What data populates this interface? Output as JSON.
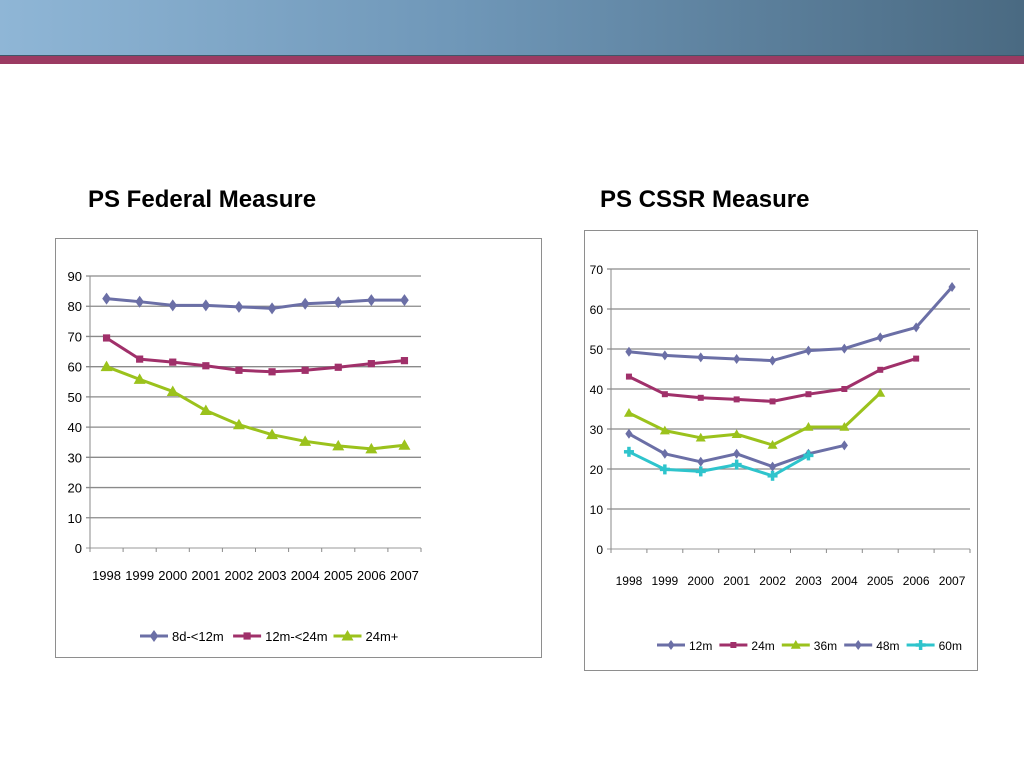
{
  "slide": {
    "header_color": "#6f97b8",
    "accent_color": "#9b3a62"
  },
  "chart_data": [
    {
      "type": "line",
      "title": "PS Federal Measure",
      "xlabel": "",
      "ylabel": "",
      "categories": [
        "1998",
        "1999",
        "2000",
        "2001",
        "2002",
        "2003",
        "2004",
        "2005",
        "2006",
        "2007"
      ],
      "ylim": [
        0,
        90
      ],
      "yticks": [
        0,
        10,
        20,
        30,
        40,
        50,
        60,
        70,
        80,
        90
      ],
      "grid": true,
      "legend": "bottom",
      "series": [
        {
          "name": "8d-<12m",
          "color": "#6b6fa6",
          "marker": "diamond",
          "values": [
            82.5,
            81.5,
            80.3,
            80.3,
            79.8,
            79.3,
            80.8,
            81.3,
            82,
            82
          ]
        },
        {
          "name": "12m-<24m",
          "color": "#a0306a",
          "marker": "square",
          "values": [
            69.5,
            62.5,
            61.5,
            60.3,
            58.8,
            58.3,
            58.8,
            59.8,
            61,
            62
          ]
        },
        {
          "name": "24m+",
          "color": "#9bc21c",
          "marker": "triangle",
          "values": [
            60,
            55.8,
            51.8,
            45.5,
            40.8,
            37.5,
            35.3,
            33.8,
            32.8,
            34
          ]
        }
      ]
    },
    {
      "type": "line",
      "title": "PS CSSR Measure",
      "xlabel": "",
      "ylabel": "",
      "categories": [
        "1998",
        "1999",
        "2000",
        "2001",
        "2002",
        "2003",
        "2004",
        "2005",
        "2006",
        "2007"
      ],
      "ylim": [
        0,
        70
      ],
      "yticks": [
        0,
        10,
        20,
        30,
        40,
        50,
        60,
        70
      ],
      "grid": true,
      "legend": "bottom",
      "series": [
        {
          "name": "12m",
          "color": "#6b6fa6",
          "marker": "diamond",
          "values": [
            49.3,
            48.4,
            47.9,
            47.5,
            47.1,
            49.6,
            50.1,
            52.9,
            55.4,
            65.5
          ]
        },
        {
          "name": "24m",
          "color": "#a0306a",
          "marker": "square",
          "values": [
            43.1,
            38.7,
            37.8,
            37.4,
            36.9,
            38.7,
            40,
            44.8,
            47.6,
            null
          ]
        },
        {
          "name": "36m",
          "color": "#9bc21c",
          "marker": "triangle",
          "values": [
            34,
            29.6,
            27.8,
            28.7,
            26,
            30.5,
            30.5,
            39,
            null,
            null
          ]
        },
        {
          "name": "48m",
          "color": "#6b6fa6",
          "marker": "diamond",
          "values": [
            28.8,
            23.8,
            21.8,
            23.8,
            20.6,
            23.8,
            25.9,
            null,
            null,
            null
          ]
        },
        {
          "name": "60m",
          "color": "#2ec4cc",
          "marker": "plus",
          "values": [
            24.3,
            19.9,
            19.4,
            21.1,
            18.3,
            23.4,
            null,
            null,
            null,
            null
          ]
        }
      ]
    }
  ]
}
